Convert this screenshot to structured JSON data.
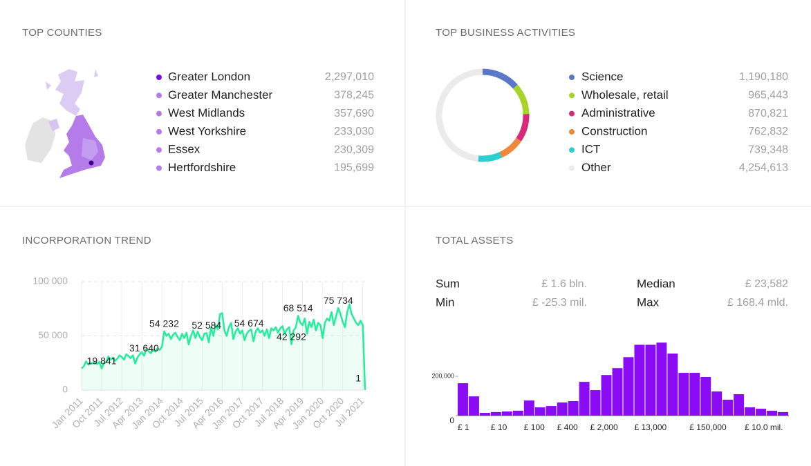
{
  "counties": {
    "title": "TOP COUNTIES",
    "items": [
      {
        "name": "Greater London",
        "value": "2,297,010",
        "color": "#7410e0"
      },
      {
        "name": "Greater Manchester",
        "value": "378,245",
        "color": "#b57be9"
      },
      {
        "name": "West Midlands",
        "value": "357,690",
        "color": "#b57be9"
      },
      {
        "name": "West Yorkshire",
        "value": "233,030",
        "color": "#b57be9"
      },
      {
        "name": "Essex",
        "value": "230,309",
        "color": "#b57be9"
      },
      {
        "name": "Hertfordshire",
        "value": "195,699",
        "color": "#b57be9"
      }
    ]
  },
  "chart_data": [
    {
      "type": "pie",
      "title": "TOP BUSINESS ACTIVITIES",
      "donut": true,
      "categories": [
        "Science",
        "Wholesale, retail",
        "Administrative",
        "Construction",
        "ICT",
        "Other"
      ],
      "values": [
        1190180,
        965443,
        870821,
        762832,
        739348,
        4254613
      ],
      "value_labels": [
        "1,190,180",
        "965,443",
        "870,821",
        "762,832",
        "739,348",
        "4,254,613"
      ],
      "colors": [
        "#5a78c8",
        "#a8d42a",
        "#d8297a",
        "#f0883a",
        "#2ccfd0",
        "#ebebeb"
      ]
    },
    {
      "type": "line",
      "title": "INCORPORATION TREND",
      "color": "#22ee9a",
      "area": true,
      "grid": true,
      "categories": [
        "Jan 2011",
        null,
        null,
        null,
        null,
        null,
        null,
        null,
        null,
        "Oct 2011",
        null,
        null,
        null,
        null,
        null,
        null,
        null,
        null,
        "Jul 2012",
        null,
        null,
        null,
        null,
        null,
        null,
        null,
        null,
        "Apr 2013",
        null,
        null,
        null,
        null,
        null,
        null,
        null,
        null,
        "Jan 2014",
        null,
        null,
        null,
        null,
        null,
        null,
        null,
        null,
        "Oct 2014",
        null,
        null,
        null,
        null,
        null,
        null,
        null,
        null,
        "Jul 2015",
        null,
        null,
        null,
        null,
        null,
        null,
        null,
        null,
        "Apr 2016",
        null,
        null,
        null,
        null,
        null,
        null,
        null,
        null,
        "Jan 2017",
        null,
        null,
        null,
        null,
        null,
        null,
        null,
        null,
        "Oct 2017",
        null,
        null,
        null,
        null,
        null,
        null,
        null,
        null,
        "Jul 2018",
        null,
        null,
        null,
        null,
        null,
        null,
        null,
        null,
        "Apr 2019",
        null,
        null,
        null,
        null,
        null,
        null,
        null,
        null,
        "Jan 2020",
        null,
        null,
        null,
        null,
        null,
        null,
        null,
        null,
        "Oct 2020",
        null,
        null,
        null,
        null,
        null,
        null,
        null,
        null,
        "Jul 2021",
        null
      ],
      "values": [
        20000,
        22000,
        26500,
        23500,
        25000,
        24500,
        25500,
        24000,
        26000,
        19841,
        25000,
        25500,
        31000,
        28000,
        30000,
        27000,
        29000,
        32000,
        30500,
        28000,
        33000,
        31500,
        29500,
        32000,
        24500,
        30000,
        33000,
        35000,
        31640,
        38000,
        36000,
        34000,
        37000,
        35500,
        38500,
        37000,
        40000,
        54232,
        50000,
        52000,
        47000,
        51000,
        53000,
        49000,
        46000,
        52000,
        48000,
        53000,
        42000,
        50000,
        55000,
        48000,
        54000,
        49000,
        46000,
        52000,
        52584,
        44000,
        58000,
        50000,
        60000,
        56000,
        70000,
        71000,
        55000,
        50000,
        58000,
        62000,
        47000,
        54000,
        57000,
        52000,
        55000,
        46000,
        52000,
        54674,
        56000,
        45000,
        54000,
        57000,
        53000,
        55000,
        50000,
        56000,
        48000,
        57000,
        55000,
        58000,
        53000,
        57000,
        59000,
        52000,
        56000,
        58000,
        42292,
        55000,
        58000,
        68514,
        62000,
        60000,
        66000,
        52000,
        63000,
        58000,
        65000,
        55000,
        62000,
        60000,
        48000,
        62000,
        66000,
        64000,
        72000,
        60000,
        68000,
        75734,
        70000,
        63000,
        58000,
        72000,
        79000,
        70000,
        66000,
        62000,
        60000,
        64000,
        60000,
        1
      ],
      "value_labels": [
        null,
        null,
        null,
        null,
        null,
        null,
        null,
        null,
        null,
        "19 841",
        null,
        null,
        null,
        null,
        null,
        null,
        null,
        null,
        null,
        null,
        null,
        null,
        null,
        null,
        null,
        null,
        null,
        null,
        "31 640",
        null,
        null,
        null,
        null,
        null,
        null,
        null,
        null,
        "54 232",
        null,
        null,
        null,
        null,
        null,
        null,
        null,
        null,
        null,
        null,
        null,
        null,
        null,
        null,
        null,
        null,
        null,
        null,
        "52 584",
        null,
        null,
        null,
        null,
        null,
        null,
        null,
        null,
        null,
        null,
        null,
        null,
        null,
        null,
        null,
        null,
        null,
        null,
        "54 674",
        null,
        null,
        null,
        null,
        null,
        null,
        null,
        null,
        null,
        null,
        null,
        null,
        null,
        null,
        null,
        null,
        null,
        null,
        "42 292",
        null,
        null,
        "68 514",
        null,
        null,
        null,
        null,
        null,
        null,
        null,
        null,
        null,
        null,
        null,
        null,
        null,
        null,
        null,
        null,
        null,
        "75 734",
        null,
        null,
        null,
        null,
        null,
        null,
        null,
        null,
        null,
        null,
        null,
        "1"
      ],
      "ylim": [
        0,
        100000
      ],
      "yticks": [
        0,
        {
          "value": 50000,
          "label": "50 000"
        },
        {
          "value": 100000,
          "label": "100 000"
        }
      ]
    },
    {
      "type": "bar",
      "title": "TOTAL ASSETS",
      "color": "#8a0cf5",
      "stats": [
        {
          "label": "Sum",
          "value": "£ 1.6 bln."
        },
        {
          "label": "Median",
          "value": "£ 23,582"
        },
        {
          "label": "Min",
          "value": "£ -25.3 mil."
        },
        {
          "label": "Max",
          "value": "£ 168.4 mld."
        }
      ],
      "categories": [
        "£ 1",
        null,
        null,
        "£ 10",
        null,
        null,
        "£ 100",
        null,
        null,
        "£ 400",
        null,
        null,
        "£ 2,000",
        null,
        null,
        null,
        "£ 13,000",
        null,
        null,
        null,
        null,
        "£ 150,000",
        null,
        null,
        null,
        null,
        "£ 10.0 mil.",
        null,
        null,
        null
      ],
      "values": [
        165000,
        98000,
        14000,
        18000,
        21000,
        25000,
        77000,
        42000,
        49000,
        67000,
        74000,
        172000,
        130000,
        207000,
        242000,
        298000,
        361000,
        361000,
        372000,
        316000,
        218000,
        218000,
        197000,
        123000,
        81000,
        109000,
        42000,
        35000,
        25000,
        18000
      ],
      "ylim": [
        0,
        380000
      ],
      "yticks": [
        0,
        {
          "value": 200000,
          "label": "200,000"
        }
      ]
    }
  ]
}
